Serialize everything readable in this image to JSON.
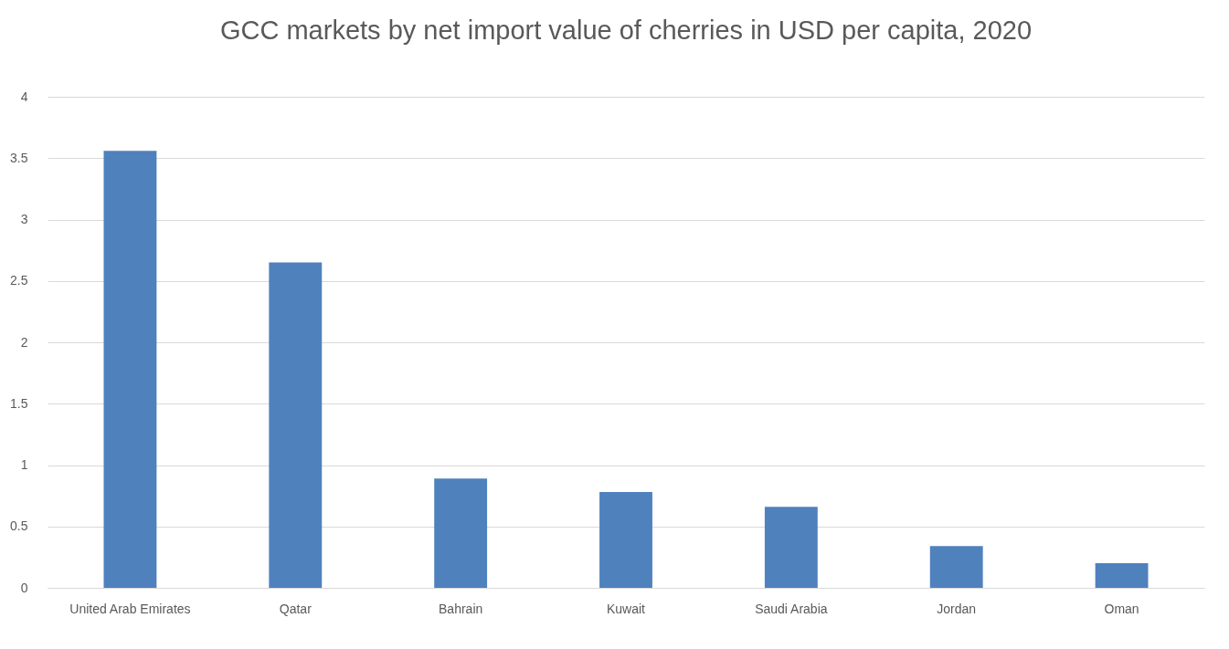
{
  "chart_data": {
    "type": "bar",
    "title": "GCC markets by net import value of cherries in USD per capita, 2020",
    "categories": [
      "United Arab Emirates",
      "Qatar",
      "Bahrain",
      "Kuwait",
      "Saudi Arabia",
      "Jordan",
      "Oman"
    ],
    "values": [
      3.56,
      2.65,
      0.89,
      0.78,
      0.66,
      0.34,
      0.2
    ],
    "color": "#4f81bd",
    "ylim": [
      0,
      4
    ],
    "yticks": [
      0,
      0.5,
      1,
      1.5,
      2,
      2.5,
      3,
      3.5,
      4
    ],
    "grid": "y"
  }
}
